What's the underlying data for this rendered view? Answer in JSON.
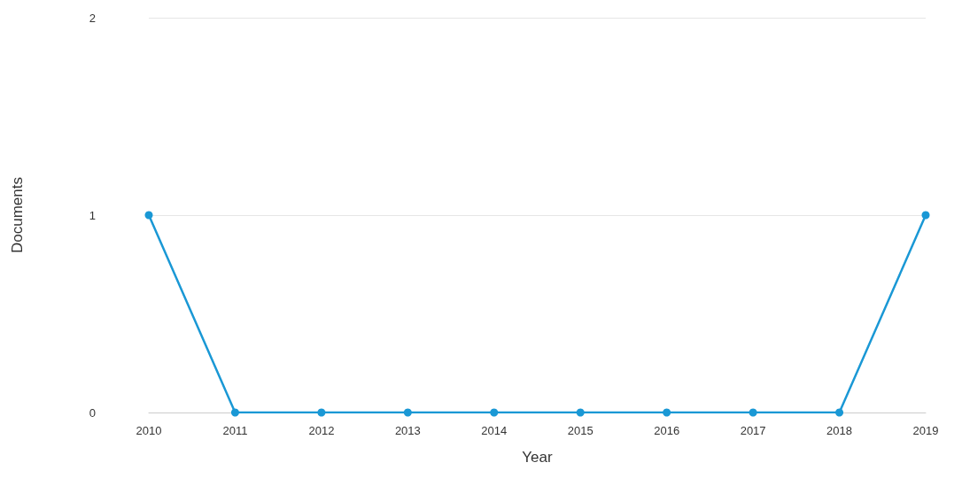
{
  "chart_data": {
    "type": "line",
    "xlabel": "Year",
    "ylabel": "Documents",
    "categories": [
      "2010",
      "2011",
      "2012",
      "2013",
      "2014",
      "2015",
      "2016",
      "2017",
      "2018",
      "2019"
    ],
    "series": [
      {
        "color": "#1a98d5",
        "values": [
          1,
          0,
          0,
          0,
          0,
          0,
          0,
          0,
          0,
          1
        ]
      }
    ],
    "ylim": [
      0,
      2
    ],
    "yticks": [
      0,
      1,
      2
    ],
    "grid": "y",
    "marker": "circle",
    "line_style": "solid"
  }
}
